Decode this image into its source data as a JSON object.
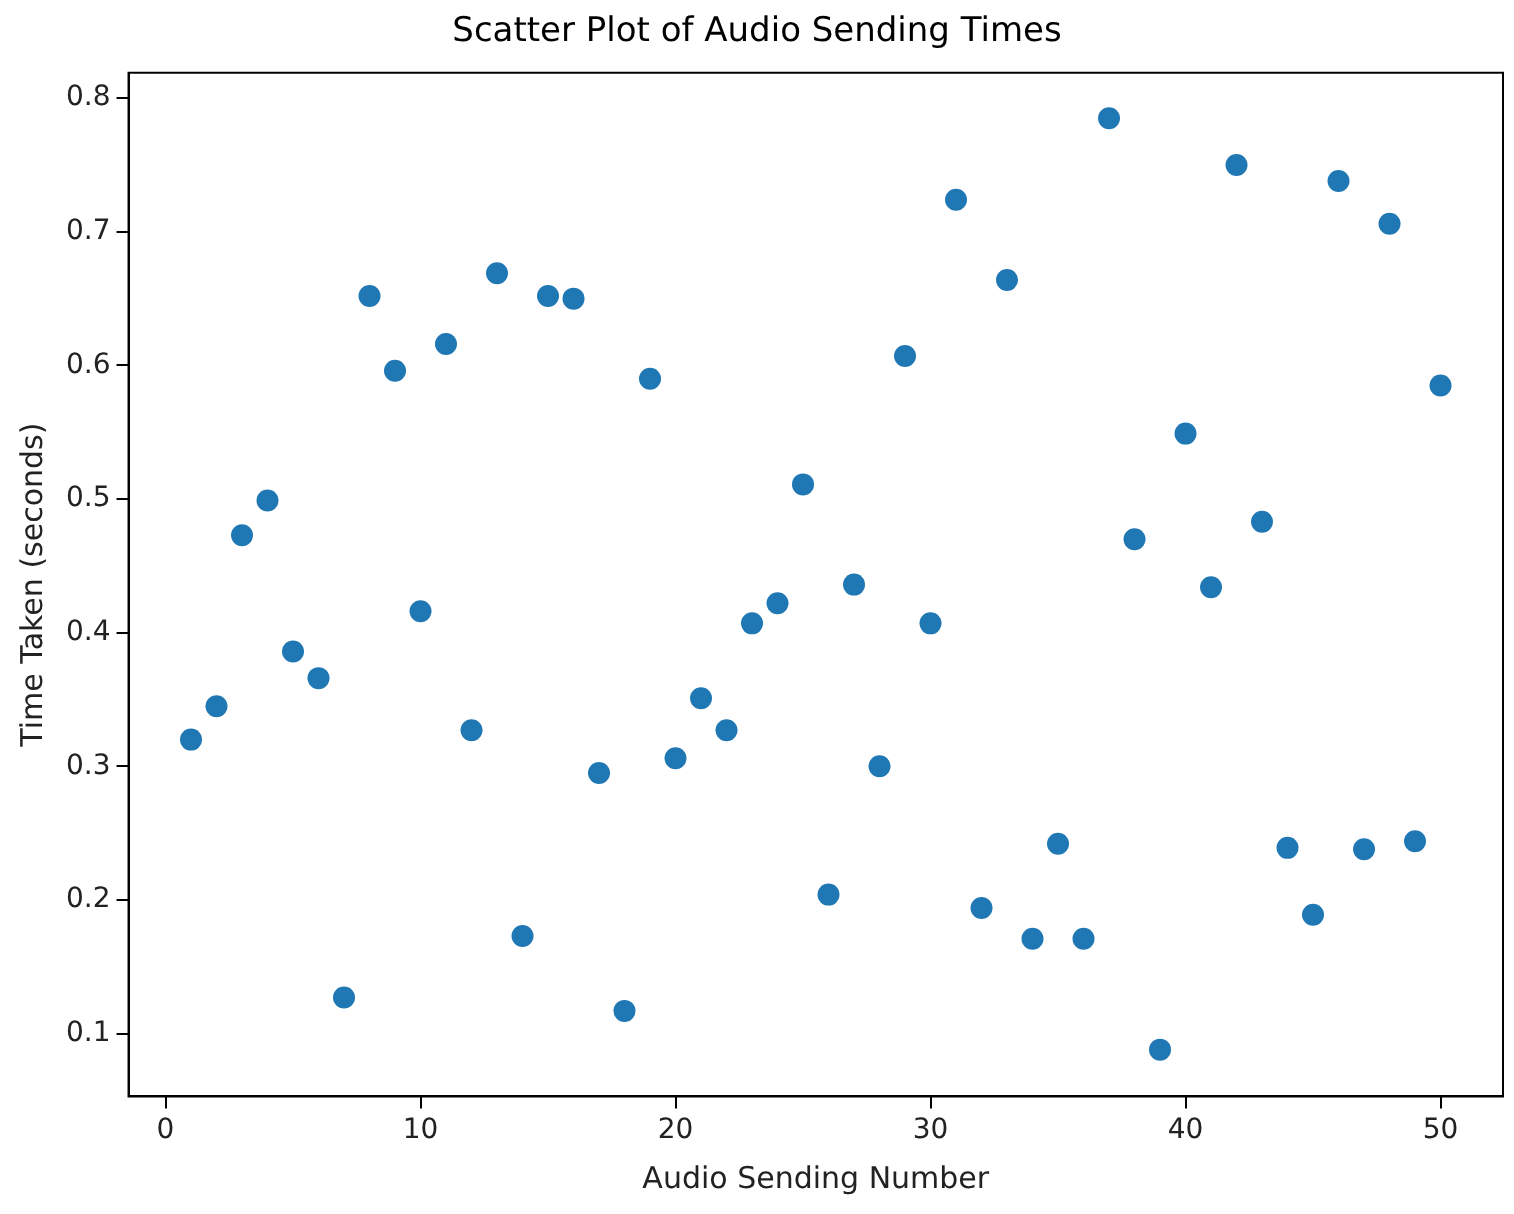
{
  "chart_data": {
    "type": "scatter",
    "title": "Scatter Plot of Audio Sending Times",
    "xlabel": "Audio Sending Number",
    "ylabel": "Time Taken (seconds)",
    "x": [
      1,
      2,
      3,
      4,
      5,
      6,
      7,
      8,
      9,
      10,
      11,
      12,
      13,
      14,
      15,
      16,
      17,
      18,
      19,
      20,
      21,
      22,
      23,
      24,
      25,
      26,
      27,
      28,
      29,
      30,
      31,
      32,
      33,
      34,
      35,
      36,
      37,
      38,
      39,
      40,
      41,
      42,
      43,
      44,
      45,
      46,
      47,
      48,
      49,
      50
    ],
    "series": [
      {
        "color": "#1f77b4",
        "values": [
          0.32,
          0.345,
          0.473,
          0.499,
          0.386,
          0.366,
          0.127,
          0.652,
          0.596,
          0.416,
          0.616,
          0.327,
          0.669,
          0.173,
          0.652,
          0.65,
          0.295,
          0.117,
          0.59,
          0.306,
          0.351,
          0.327,
          0.407,
          0.422,
          0.511,
          0.204,
          0.436,
          0.3,
          0.607,
          0.407,
          0.724,
          0.194,
          0.664,
          0.171,
          0.242,
          0.171,
          0.785,
          0.47,
          0.088,
          0.549,
          0.434,
          0.75,
          0.483,
          0.239,
          0.189,
          0.738,
          0.238,
          0.706,
          0.244,
          0.585
        ]
      }
    ],
    "xlim": [
      -1.45,
      52.45
    ],
    "xticks": [
      0,
      10,
      20,
      30,
      40,
      50
    ],
    "ylim": [
      0.053,
      0.819
    ],
    "yticks": [
      0.1,
      0.2,
      0.3,
      0.4,
      0.5,
      0.6,
      0.7,
      0.8
    ],
    "grid": false,
    "legend": false,
    "marker": "circle"
  }
}
